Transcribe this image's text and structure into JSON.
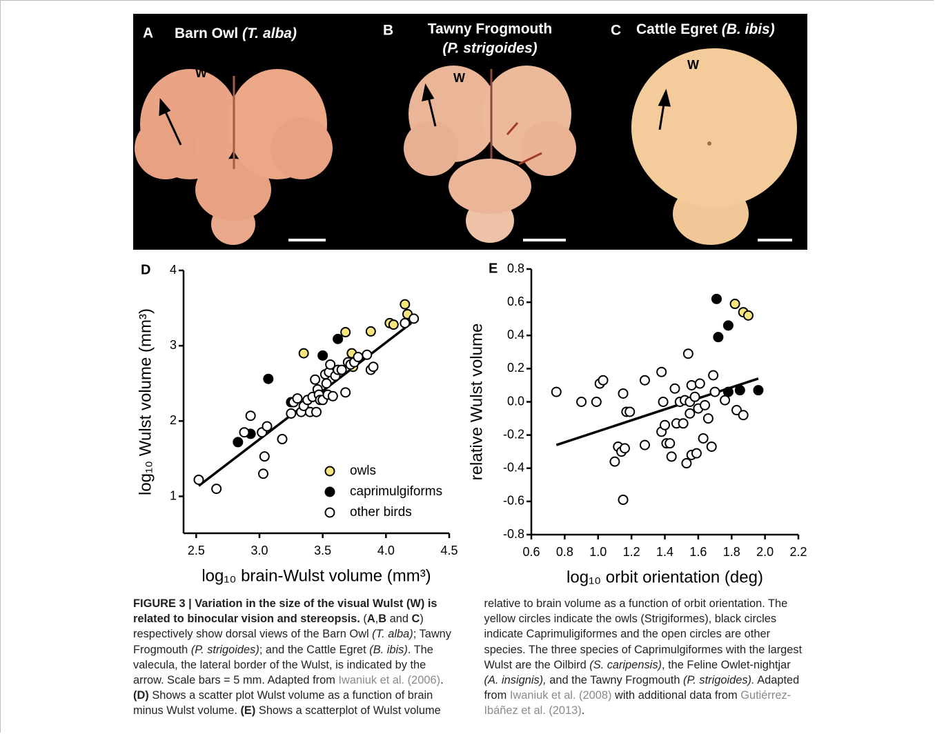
{
  "panels": [
    {
      "letter": "A",
      "title": "Barn Owl",
      "species": "(T. alba)",
      "mark": "W"
    },
    {
      "letter": "B",
      "title": "Tawny Frogmouth",
      "species": "(P. strigoides)",
      "mark": "W"
    },
    {
      "letter": "C",
      "title": "Cattle Egret",
      "species": "(B. ibis)",
      "mark": "W"
    }
  ],
  "chart_data": [
    {
      "type": "scatter",
      "panel": "D",
      "x_label": "log₁₀ brain-Wulst volume (mm³)",
      "y_label": "log₁₀ Wulst volume (mm³)",
      "xlim": [
        2.4,
        4.5
      ],
      "ylim": [
        0.51,
        4
      ],
      "xticks": [
        2.5,
        {
          "value": 3,
          "label": "3.0"
        },
        3.5,
        {
          "value": 4,
          "label": "4.0"
        },
        4.5
      ],
      "yticks": [
        1,
        2,
        3,
        4
      ],
      "legend": "lower right",
      "series": [
        {
          "name": "owls",
          "color": "#f6e47c",
          "x": [
            3.35,
            3.68,
            3.73,
            3.74,
            3.88,
            4.03,
            4.06,
            4.15,
            4.17
          ],
          "values": [
            2.9,
            3.18,
            2.9,
            2.72,
            3.19,
            3.3,
            3.28,
            3.55,
            3.42
          ]
        },
        {
          "name": "caprimulgiforms",
          "color": "#000000",
          "x": [
            2.83,
            2.93,
            3.07,
            3.25,
            3.5,
            3.62
          ],
          "values": [
            1.72,
            1.83,
            2.56,
            2.25,
            2.87,
            3.09
          ]
        },
        {
          "name": "other birds",
          "color": "#ffffff",
          "x": [
            2.52,
            2.66,
            2.88,
            2.93,
            3.02,
            3.03,
            3.04,
            3.06,
            3.18,
            3.25,
            3.27,
            3.3,
            3.33,
            3.35,
            3.38,
            3.4,
            3.42,
            3.44,
            3.45,
            3.46,
            3.47,
            3.48,
            3.5,
            3.52,
            3.53,
            3.54,
            3.55,
            3.56,
            3.58,
            3.6,
            3.62,
            3.65,
            3.68,
            3.7,
            3.72,
            3.75,
            3.78,
            3.85,
            3.88,
            3.9,
            4.15,
            4.22
          ],
          "values": [
            1.22,
            1.1,
            1.85,
            2.07,
            1.85,
            1.3,
            1.53,
            1.93,
            1.76,
            2.1,
            2.25,
            2.3,
            2.12,
            2.2,
            2.28,
            2.12,
            2.32,
            2.55,
            2.12,
            2.42,
            2.35,
            2.28,
            2.28,
            2.62,
            2.5,
            2.35,
            2.65,
            2.75,
            2.33,
            2.6,
            2.68,
            2.68,
            2.38,
            2.78,
            2.75,
            2.78,
            2.85,
            2.88,
            2.68,
            2.72,
            3.3,
            3.36
          ]
        }
      ],
      "fit": {
        "x": [
          2.52,
          4.2
        ],
        "y": [
          1.14,
          3.3
        ]
      }
    },
    {
      "type": "scatter",
      "panel": "E",
      "x_label": "log₁₀ orbit orientation (deg)",
      "y_label": "relative Wulst volume",
      "xlim": [
        0.6,
        2.2
      ],
      "ylim": [
        -0.8,
        0.8
      ],
      "xticks": [
        0.6,
        0.8,
        {
          "value": 1,
          "label": "1.0"
        },
        1.2,
        1.4,
        1.6,
        1.8,
        {
          "value": 2,
          "label": "2.0"
        },
        2.2
      ],
      "yticks": [
        -0.8,
        -0.6,
        -0.4,
        -0.2,
        {
          "value": 0,
          "label": "0.0"
        },
        0.2,
        0.4,
        0.6,
        0.8
      ],
      "series": [
        {
          "name": "owls",
          "color": "#f6e47c",
          "x": [
            1.82,
            1.87,
            1.9
          ],
          "values": [
            0.59,
            0.54,
            0.52
          ]
        },
        {
          "name": "caprimulgiforms",
          "color": "#000000",
          "x": [
            1.71,
            1.72,
            1.78,
            1.78,
            1.85,
            1.96
          ],
          "values": [
            0.62,
            0.39,
            0.46,
            0.06,
            0.07,
            0.07
          ]
        },
        {
          "name": "other birds",
          "color": "#ffffff",
          "x": [
            0.75,
            0.9,
            0.99,
            1.01,
            1.03,
            1.1,
            1.12,
            1.14,
            1.15,
            1.15,
            1.16,
            1.17,
            1.19,
            1.28,
            1.28,
            1.38,
            1.38,
            1.39,
            1.4,
            1.41,
            1.43,
            1.44,
            1.46,
            1.47,
            1.49,
            1.51,
            1.52,
            1.53,
            1.54,
            1.55,
            1.55,
            1.56,
            1.56,
            1.58,
            1.59,
            1.6,
            1.61,
            1.63,
            1.64,
            1.66,
            1.68,
            1.69,
            1.7,
            1.76,
            1.83,
            1.87
          ],
          "values": [
            0.06,
            0.0,
            0.0,
            0.11,
            0.13,
            -0.36,
            -0.27,
            -0.3,
            0.05,
            -0.59,
            -0.28,
            -0.06,
            -0.06,
            0.13,
            -0.26,
            0.18,
            -0.18,
            0.0,
            -0.14,
            -0.25,
            -0.25,
            -0.33,
            0.08,
            -0.13,
            0.0,
            -0.13,
            0.01,
            -0.37,
            0.29,
            0.0,
            -0.07,
            0.1,
            -0.32,
            0.03,
            -0.31,
            -0.04,
            0.11,
            -0.22,
            -0.02,
            -0.1,
            -0.27,
            0.16,
            0.06,
            0.01,
            -0.05,
            -0.08
          ]
        }
      ],
      "fit": {
        "x": [
          0.75,
          1.96
        ],
        "y": [
          -0.26,
          0.14
        ]
      }
    }
  ],
  "caption": {
    "runs": [
      "FIGURE 3 | Variation in the size of the visual Wulst (W) is related to binocular vision and stereopsis.",
      " (",
      "A",
      ",",
      "B",
      " and ",
      "C",
      ") respectively show dorsal views of the Barn Owl ",
      "(T. alba)",
      "; Tawny Frogmouth ",
      "(P. strigoides)",
      "; and the Cattle Egret ",
      "(B. ibis)",
      ". The valecula, the lateral border of the Wulst, is indicated by the arrow. Scale bars = 5 mm. Adapted from ",
      "Iwaniuk et al. (2006)",
      ". ",
      "(D)",
      " Shows a scatter plot Wulst volume as a function of brain minus Wulst volume. ",
      "(E)",
      " Shows a scatterplot of Wulst volume relative to brain volume as a function of orbit orientation. The yellow circles indicate the owls (Strigiformes), black circles indicate Caprimuligiformes and the open circles are other species. The three species of Caprimulgiformes with the largest Wulst are the Oilbird ",
      "(S. caripensis)",
      ", the Feline Owlet-nightjar ",
      "(A. insignis),",
      " and the Tawny Frogmouth ",
      "(P. strigoides).",
      " Adapted from ",
      "Iwaniuk et al. (2008)",
      " with additional data from ",
      "Gutiérrez-Ibáñez et al. (2013)",
      "."
    ]
  }
}
